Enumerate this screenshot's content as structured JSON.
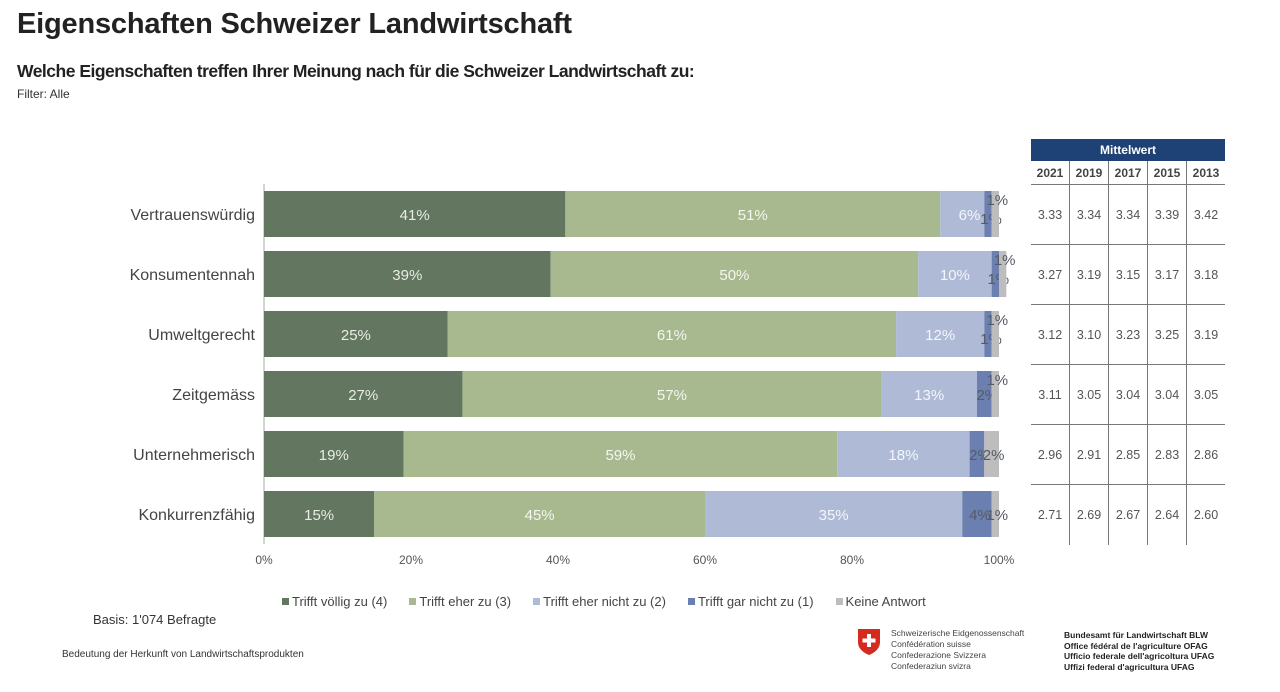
{
  "header": {
    "title": "Eigenschaften Schweizer Landwirtschaft",
    "subtitle": "Welche Eigenschaften treffen Ihrer Meinung nach für die Schweizer Landwirtschaft zu:",
    "filter": "Filter: Alle"
  },
  "chart_data": {
    "type": "bar",
    "orientation": "horizontal",
    "stacked": "100%",
    "categories": [
      "Vertrauenswürdig",
      "Konsumentennah",
      "Umweltgerecht",
      "Zeitgemäss",
      "Unternehmerisch",
      "Konkurrenzfähig"
    ],
    "series": [
      {
        "name": "Trifft völlig zu (4)",
        "color": "#637660",
        "label_color": "#e8ece4",
        "values": [
          41,
          39,
          25,
          27,
          19,
          15
        ]
      },
      {
        "name": "Trifft eher zu (3)",
        "color": "#a8b990",
        "label_color": "#f4f6ef",
        "values": [
          51,
          50,
          61,
          57,
          59,
          45
        ]
      },
      {
        "name": "Trifft eher nicht zu (2)",
        "color": "#aebad6",
        "label_color": "#f4f6fb",
        "values": [
          6,
          10,
          12,
          13,
          18,
          35
        ]
      },
      {
        "name": "Trifft gar nicht zu (1)",
        "color": "#6b80b0",
        "label_color": "#555a66",
        "values": [
          1,
          1,
          1,
          2,
          2,
          4
        ]
      },
      {
        "name": "Keine Antwort",
        "color": "#bdbdbd",
        "label_color": "#555a66",
        "values": [
          1,
          1,
          1,
          1,
          2,
          1
        ]
      }
    ],
    "x_ticks": [
      "0%",
      "20%",
      "40%",
      "60%",
      "80%",
      "100%"
    ],
    "xlim": [
      0,
      100
    ],
    "legend_position": "bottom",
    "grid": false
  },
  "mean_table": {
    "header": "Mittelwert",
    "years": [
      "2021",
      "2019",
      "2017",
      "2015",
      "2013"
    ],
    "rows": [
      [
        "3.33",
        "3.34",
        "3.34",
        "3.39",
        "3.42"
      ],
      [
        "3.27",
        "3.19",
        "3.15",
        "3.17",
        "3.18"
      ],
      [
        "3.12",
        "3.10",
        "3.23",
        "3.25",
        "3.19"
      ],
      [
        "3.11",
        "3.05",
        "3.04",
        "3.04",
        "3.05"
      ],
      [
        "2.96",
        "2.91",
        "2.85",
        "2.83",
        "2.86"
      ],
      [
        "2.71",
        "2.69",
        "2.67",
        "2.64",
        "2.60"
      ]
    ],
    "header_color": "#1f4276"
  },
  "footer": {
    "basis": "Basis: 1'074 Befragte",
    "note": "Bedeutung der Herkunft von Landwirtschaftsprodukten",
    "confederation": [
      "Schweizerische Eidgenossenschaft",
      "Confédération suisse",
      "Confederazione Svizzera",
      "Confederaziun svizra"
    ],
    "office": [
      "Bundesamt für Landwirtschaft BLW",
      "Office fédéral de l'agriculture OFAG",
      "Ufficio federale dell'agricoltura UFAG",
      "Uffizi federal d'agricultura UFAG"
    ]
  }
}
